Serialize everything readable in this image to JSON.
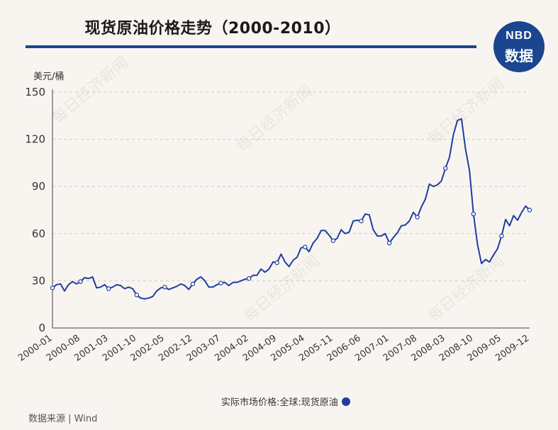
{
  "title": "现货原油价格走势（2000-2010）",
  "logo": {
    "top": "NBD",
    "bottom": "数据"
  },
  "watermark": "每日经济新闻",
  "source": "数据来源 | Wind",
  "colors": {
    "line": "#1f3e9e",
    "title_rule": "#1a4690",
    "logo_bg": "#1a4690",
    "grid": "#cfcac4"
  },
  "chart_data": {
    "type": "line",
    "ylabel": "美元/桶",
    "ylim": [
      0,
      150
    ],
    "yticks": [
      0,
      30,
      60,
      90,
      120,
      150
    ],
    "grid": true,
    "legend_position": "bottom",
    "x_tick_labels": [
      "2000-01",
      "2000-08",
      "2001-03",
      "2001-10",
      "2002-05",
      "2002-12",
      "2003-07",
      "2004-02",
      "2004-09",
      "2005-04",
      "2005-11",
      "2006-06",
      "2007-01",
      "2007-08",
      "2008-03",
      "2008-10",
      "2009-05",
      "2009-12"
    ],
    "series": [
      {
        "name": "实际市场价格:全球:现货原油",
        "x": [
          "2000-01",
          "2000-02",
          "2000-03",
          "2000-04",
          "2000-05",
          "2000-06",
          "2000-07",
          "2000-08",
          "2000-09",
          "2000-10",
          "2000-11",
          "2000-12",
          "2001-01",
          "2001-02",
          "2001-03",
          "2001-04",
          "2001-05",
          "2001-06",
          "2001-07",
          "2001-08",
          "2001-09",
          "2001-10",
          "2001-11",
          "2001-12",
          "2002-01",
          "2002-02",
          "2002-03",
          "2002-04",
          "2002-05",
          "2002-06",
          "2002-07",
          "2002-08",
          "2002-09",
          "2002-10",
          "2002-11",
          "2002-12",
          "2003-01",
          "2003-02",
          "2003-03",
          "2003-04",
          "2003-05",
          "2003-06",
          "2003-07",
          "2003-08",
          "2003-09",
          "2003-10",
          "2003-11",
          "2003-12",
          "2004-01",
          "2004-02",
          "2004-03",
          "2004-04",
          "2004-05",
          "2004-06",
          "2004-07",
          "2004-08",
          "2004-09",
          "2004-10",
          "2004-11",
          "2004-12",
          "2005-01",
          "2005-02",
          "2005-03",
          "2005-04",
          "2005-05",
          "2005-06",
          "2005-07",
          "2005-08",
          "2005-09",
          "2005-10",
          "2005-11",
          "2005-12",
          "2006-01",
          "2006-02",
          "2006-03",
          "2006-04",
          "2006-05",
          "2006-06",
          "2006-07",
          "2006-08",
          "2006-09",
          "2006-10",
          "2006-11",
          "2006-12",
          "2007-01",
          "2007-02",
          "2007-03",
          "2007-04",
          "2007-05",
          "2007-06",
          "2007-07",
          "2007-08",
          "2007-09",
          "2007-10",
          "2007-11",
          "2007-12",
          "2008-01",
          "2008-02",
          "2008-03",
          "2008-04",
          "2008-05",
          "2008-06",
          "2008-07",
          "2008-08",
          "2008-09",
          "2008-10",
          "2008-11",
          "2008-12",
          "2009-01",
          "2009-02",
          "2009-03",
          "2009-04",
          "2009-05",
          "2009-06",
          "2009-07",
          "2009-08",
          "2009-09",
          "2009-10",
          "2009-11",
          "2009-12"
        ],
        "values": [
          25.5,
          27.5,
          28.0,
          23.5,
          27.5,
          29.5,
          28.0,
          29.5,
          32.0,
          31.5,
          32.5,
          25.5,
          26.0,
          27.5,
          25.0,
          26.0,
          27.5,
          27.0,
          25.0,
          26.0,
          25.0,
          21.0,
          19.0,
          18.5,
          19.0,
          20.0,
          23.5,
          25.5,
          26.0,
          24.5,
          25.5,
          26.5,
          28.0,
          27.0,
          24.5,
          28.0,
          31.0,
          32.5,
          30.0,
          26.0,
          26.0,
          27.5,
          28.5,
          29.0,
          27.0,
          29.0,
          29.0,
          30.0,
          31.0,
          31.5,
          33.5,
          33.5,
          37.5,
          35.5,
          37.5,
          42.0,
          41.5,
          47.0,
          42.0,
          39.0,
          43.0,
          45.0,
          51.0,
          51.5,
          48.5,
          54.0,
          57.0,
          62.0,
          62.0,
          59.0,
          55.5,
          57.0,
          62.5,
          60.0,
          61.0,
          68.0,
          68.5,
          68.0,
          72.5,
          72.0,
          62.5,
          58.5,
          58.5,
          60.0,
          54.0,
          57.5,
          60.5,
          65.0,
          65.5,
          68.0,
          73.5,
          70.5,
          77.0,
          82.0,
          91.5,
          90.0,
          91.0,
          93.5,
          101.5,
          108.5,
          123.0,
          132.0,
          133.0,
          114.0,
          100.0,
          72.5,
          53.0,
          41.0,
          43.5,
          42.0,
          46.5,
          50.5,
          58.5,
          69.0,
          65.0,
          71.5,
          68.5,
          73.5,
          77.5,
          75.0
        ],
        "markers_at": [
          "2000-01",
          "2000-08",
          "2001-03",
          "2001-10",
          "2002-05",
          "2002-12",
          "2003-07",
          "2004-02",
          "2004-09",
          "2005-04",
          "2005-11",
          "2006-06",
          "2007-01",
          "2007-08",
          "2008-03",
          "2008-10",
          "2009-05",
          "2009-12"
        ]
      }
    ]
  }
}
